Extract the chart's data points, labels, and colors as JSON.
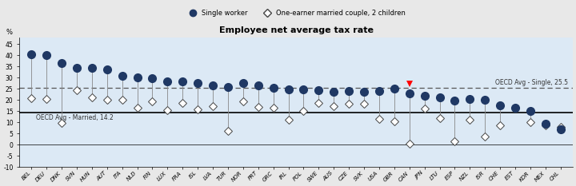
{
  "title": "Employee net average tax rate",
  "categories": [
    "BEL",
    "DEU",
    "DNK",
    "SVN",
    "HUN",
    "AUT",
    "ITA",
    "NLD",
    "FIN",
    "LUX",
    "FRA",
    "ISL",
    "LVA",
    "TUR",
    "NOR",
    "PRT",
    "GRC",
    "IRL",
    "POL",
    "SWE",
    "AUS",
    "CZE",
    "SVK",
    "USA",
    "GBR",
    "CAN",
    "JPN",
    "LTU",
    "ESP",
    "NZL",
    "ISR",
    "CHE",
    "EST",
    "KOR",
    "MEX",
    "CHL"
  ],
  "single": [
    40.4,
    39.9,
    36.4,
    34.3,
    34.3,
    33.5,
    30.7,
    30.2,
    29.8,
    28.2,
    28.1,
    27.7,
    26.4,
    25.9,
    27.4,
    26.6,
    25.4,
    24.8,
    24.7,
    24.2,
    23.5,
    24.1,
    23.5,
    24.1,
    24.9,
    22.8,
    22.0,
    21.2,
    19.7,
    20.4,
    20.2,
    17.6,
    16.4,
    14.9,
    9.5,
    7.0
  ],
  "married": [
    20.6,
    20.3,
    9.7,
    24.5,
    21.1,
    20.2,
    20.1,
    16.4,
    19.3,
    15.6,
    18.8,
    15.9,
    17.1,
    6.3,
    19.4,
    17.0,
    16.4,
    11.0,
    14.9,
    18.7,
    17.3,
    18.4,
    18.3,
    11.4,
    10.3,
    0.5,
    16.1,
    11.9,
    1.6,
    11.3,
    3.5,
    8.8,
    16.4,
    9.9,
    8.5,
    8.0
  ],
  "oecd_avg_single": 25.5,
  "oecd_avg_married": 14.2,
  "ylim": [
    -10,
    48
  ],
  "yticks": [
    -10,
    -5,
    0,
    5,
    10,
    15,
    20,
    25,
    30,
    35,
    40,
    45
  ],
  "single_color": "#1F3864",
  "background_color": "#dce9f5",
  "fig_bg": "#e8e8e8",
  "can_index": 25,
  "legend_single": "Single worker",
  "legend_married": "One-earner married couple, 2 children",
  "oecd_label_single": "OECD Avg - Single, 25.5",
  "oecd_label_married": "OECD Avg - Married, 14.2"
}
